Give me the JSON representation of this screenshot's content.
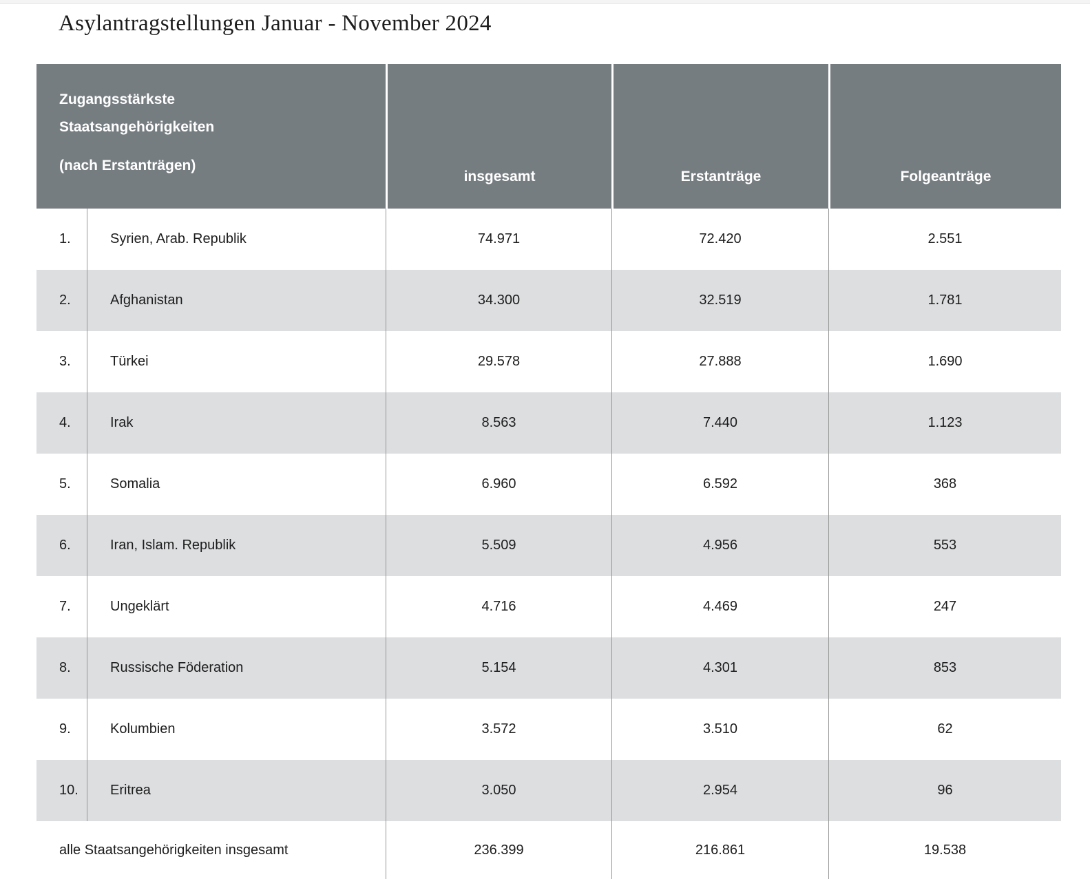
{
  "page": {
    "title": "Asylantragstellungen Januar - November 2024"
  },
  "table": {
    "header": {
      "rowhead_line1": "Zugangsstärkste",
      "rowhead_line2": "Staatsangehörigkeiten",
      "rowhead_line3": "(nach Erstanträgen)",
      "col_total": "insgesamt",
      "col_first": "Erstanträge",
      "col_follow": "Folgeanträge"
    },
    "rows": [
      {
        "rank": "1.",
        "country": "Syrien, Arab. Republik",
        "total": "74.971",
        "first": "72.420",
        "follow": "2.551"
      },
      {
        "rank": "2.",
        "country": "Afghanistan",
        "total": "34.300",
        "first": "32.519",
        "follow": "1.781"
      },
      {
        "rank": "3.",
        "country": "Türkei",
        "total": "29.578",
        "first": "27.888",
        "follow": "1.690"
      },
      {
        "rank": "4.",
        "country": "Irak",
        "total": "8.563",
        "first": "7.440",
        "follow": "1.123"
      },
      {
        "rank": "5.",
        "country": "Somalia",
        "total": "6.960",
        "first": "6.592",
        "follow": "368"
      },
      {
        "rank": "6.",
        "country": "Iran, Islam. Republik",
        "total": "5.509",
        "first": "4.956",
        "follow": "553"
      },
      {
        "rank": "7.",
        "country": "Ungeklärt",
        "total": "4.716",
        "first": "4.469",
        "follow": "247"
      },
      {
        "rank": "8.",
        "country": "Russische Föderation",
        "total": "5.154",
        "first": "4.301",
        "follow": "853"
      },
      {
        "rank": "9.",
        "country": "Kolumbien",
        "total": "3.572",
        "first": "3.510",
        "follow": "62"
      },
      {
        "rank": "10.",
        "country": "Eritrea",
        "total": "3.050",
        "first": "2.954",
        "follow": "96"
      }
    ],
    "footer": {
      "label": "alle Staatsangehörigkeiten insgesamt",
      "total": "236.399",
      "first": "216.861",
      "follow": "19.538"
    }
  },
  "chart_data": {
    "type": "table",
    "title": "Asylantragstellungen Januar - November 2024",
    "columns": [
      "Zugangsstärkste Staatsangehörigkeiten (nach Erstanträgen)",
      "insgesamt",
      "Erstanträge",
      "Folgeanträge"
    ],
    "rows": [
      [
        "Syrien, Arab. Republik",
        74971,
        72420,
        2551
      ],
      [
        "Afghanistan",
        34300,
        32519,
        1781
      ],
      [
        "Türkei",
        29578,
        27888,
        1690
      ],
      [
        "Irak",
        8563,
        7440,
        1123
      ],
      [
        "Somalia",
        6960,
        6592,
        368
      ],
      [
        "Iran, Islam. Republik",
        5509,
        4956,
        553
      ],
      [
        "Ungeklärt",
        4716,
        4469,
        247
      ],
      [
        "Russische Föderation",
        5154,
        4301,
        853
      ],
      [
        "Kolumbien",
        3572,
        3510,
        62
      ],
      [
        "Eritrea",
        3050,
        2954,
        96
      ]
    ],
    "totals_row": [
      "alle Staatsangehörigkeiten insgesamt",
      236399,
      216861,
      19538
    ],
    "layout": {
      "zebra_striping": true,
      "header_position": "top",
      "value_alignment": "center"
    }
  },
  "colors": {
    "header_bg": "#767d81",
    "zebra_row_bg": "#dcdee0",
    "grid_line": "#969696",
    "top_strip_bg": "#f4f4f5",
    "text": "#1d1d1d",
    "header_text": "#ffffff"
  }
}
